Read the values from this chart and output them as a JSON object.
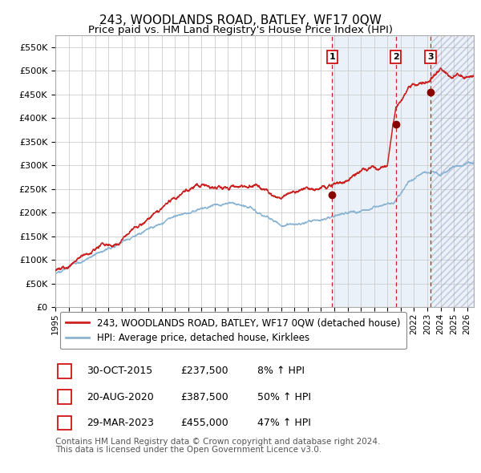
{
  "title": "243, WOODLANDS ROAD, BATLEY, WF17 0QW",
  "subtitle": "Price paid vs. HM Land Registry's House Price Index (HPI)",
  "ylim": [
    0,
    575000
  ],
  "yticks": [
    0,
    50000,
    100000,
    150000,
    200000,
    250000,
    300000,
    350000,
    400000,
    450000,
    500000,
    550000
  ],
  "ytick_labels": [
    "£0",
    "£50K",
    "£100K",
    "£150K",
    "£200K",
    "£250K",
    "£300K",
    "£350K",
    "£400K",
    "£450K",
    "£500K",
    "£550K"
  ],
  "hpi_color": "#8ab4d4",
  "price_color": "#cc2222",
  "marker_color": "#880000",
  "grid_color": "#cccccc",
  "bg_color": "#ffffff",
  "shade_color": "#dde8f5",
  "vline_color": "#cc2222",
  "transactions": [
    {
      "label": "1",
      "date": "30-OCT-2015",
      "price": 237500,
      "pct": "8%",
      "x_year": 2015.83
    },
    {
      "label": "2",
      "date": "20-AUG-2020",
      "price": 387500,
      "pct": "50%",
      "x_year": 2020.63
    },
    {
      "label": "3",
      "date": "29-MAR-2023",
      "price": 455000,
      "pct": "47%",
      "x_year": 2023.24
    }
  ],
  "legend_entries": [
    {
      "label": "243, WOODLANDS ROAD, BATLEY, WF17 0QW (detached house)",
      "color": "#cc2222"
    },
    {
      "label": "HPI: Average price, detached house, Kirklees",
      "color": "#8ab4d4"
    }
  ],
  "footnote1": "Contains HM Land Registry data © Crown copyright and database right 2024.",
  "footnote2": "This data is licensed under the Open Government Licence v3.0.",
  "title_fontsize": 11,
  "subtitle_fontsize": 9.5,
  "tick_fontsize": 8,
  "legend_fontsize": 8.5,
  "footnote_fontsize": 7.5,
  "table_fontsize": 9,
  "x_start": 1995.0,
  "x_end": 2026.5,
  "xticks": [
    1995,
    1996,
    1997,
    1998,
    1999,
    2000,
    2001,
    2002,
    2003,
    2004,
    2005,
    2006,
    2007,
    2008,
    2009,
    2010,
    2011,
    2012,
    2013,
    2014,
    2015,
    2016,
    2017,
    2018,
    2019,
    2020,
    2021,
    2022,
    2023,
    2024,
    2025,
    2026
  ]
}
